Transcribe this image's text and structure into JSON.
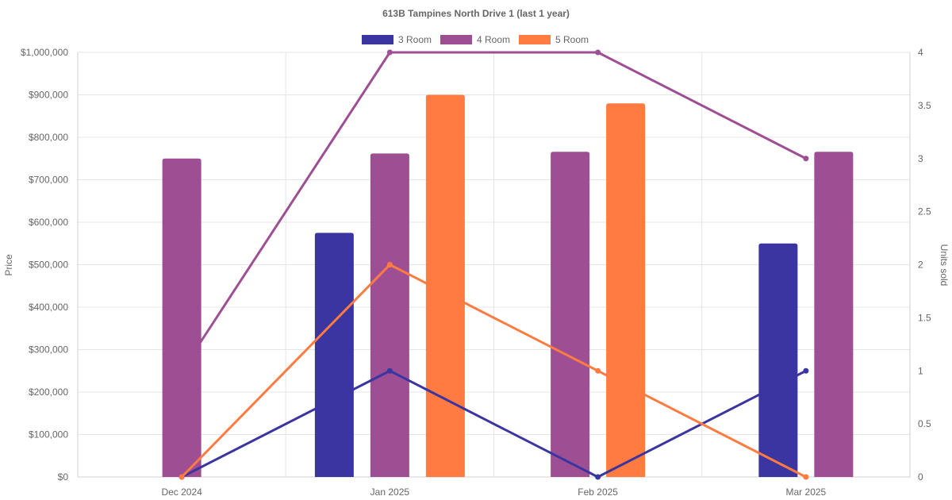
{
  "colors": {
    "three_room": "#3a35a0",
    "four_room": "#9e4f94",
    "five_room": "#ff7b41",
    "text": "#666666",
    "grid": "#e5e5e5"
  },
  "chart_data": {
    "type": "bar",
    "title": "613B Tampines North Drive 1 (last 1 year)",
    "categories": [
      "Dec 2024",
      "Jan 2025",
      "Feb 2025",
      "Mar 2025"
    ],
    "legend": {
      "position": "top",
      "entries": [
        "3 Room",
        "4 Room",
        "5 Room"
      ]
    },
    "y_left": {
      "label": "Price",
      "range": [
        0,
        1000000
      ],
      "ticks": [
        {
          "value": 0,
          "label": "$0"
        },
        {
          "value": 100000,
          "label": "$100,000"
        },
        {
          "value": 200000,
          "label": "$200,000"
        },
        {
          "value": 300000,
          "label": "$300,000"
        },
        {
          "value": 400000,
          "label": "$400,000"
        },
        {
          "value": 500000,
          "label": "$500,000"
        },
        {
          "value": 600000,
          "label": "$600,000"
        },
        {
          "value": 700000,
          "label": "$700,000"
        },
        {
          "value": 800000,
          "label": "$800,000"
        },
        {
          "value": 900000,
          "label": "$900,000"
        },
        {
          "value": 1000000,
          "label": "$1,000,000"
        }
      ]
    },
    "y_right": {
      "label": "Units sold",
      "range": [
        0,
        4
      ],
      "ticks": [
        {
          "value": 0,
          "label": "0"
        },
        {
          "value": 0.5,
          "label": "0.5"
        },
        {
          "value": 1,
          "label": "1"
        },
        {
          "value": 1.5,
          "label": "1.5"
        },
        {
          "value": 2,
          "label": "2"
        },
        {
          "value": 2.5,
          "label": "2.5"
        },
        {
          "value": 3,
          "label": "3"
        },
        {
          "value": 3.5,
          "label": "3.5"
        },
        {
          "value": 4,
          "label": "4"
        }
      ]
    },
    "grid": true,
    "bar_series": [
      {
        "name": "3 Room",
        "color_key": "three_room",
        "axis": "left",
        "values": [
          null,
          575000,
          null,
          550000
        ]
      },
      {
        "name": "4 Room",
        "color_key": "four_room",
        "axis": "left",
        "values": [
          750000,
          762000,
          766000,
          766000
        ]
      },
      {
        "name": "5 Room",
        "color_key": "five_room",
        "axis": "left",
        "values": [
          null,
          900000,
          880000,
          null
        ]
      }
    ],
    "line_series": [
      {
        "name": "3 Room",
        "color_key": "three_room",
        "axis": "right",
        "values": [
          0,
          1,
          0,
          1
        ]
      },
      {
        "name": "4 Room",
        "color_key": "four_room",
        "axis": "right",
        "values": [
          1,
          4,
          4,
          3
        ]
      },
      {
        "name": "5 Room",
        "color_key": "five_room",
        "axis": "right",
        "values": [
          0,
          2,
          1,
          0
        ]
      }
    ]
  }
}
